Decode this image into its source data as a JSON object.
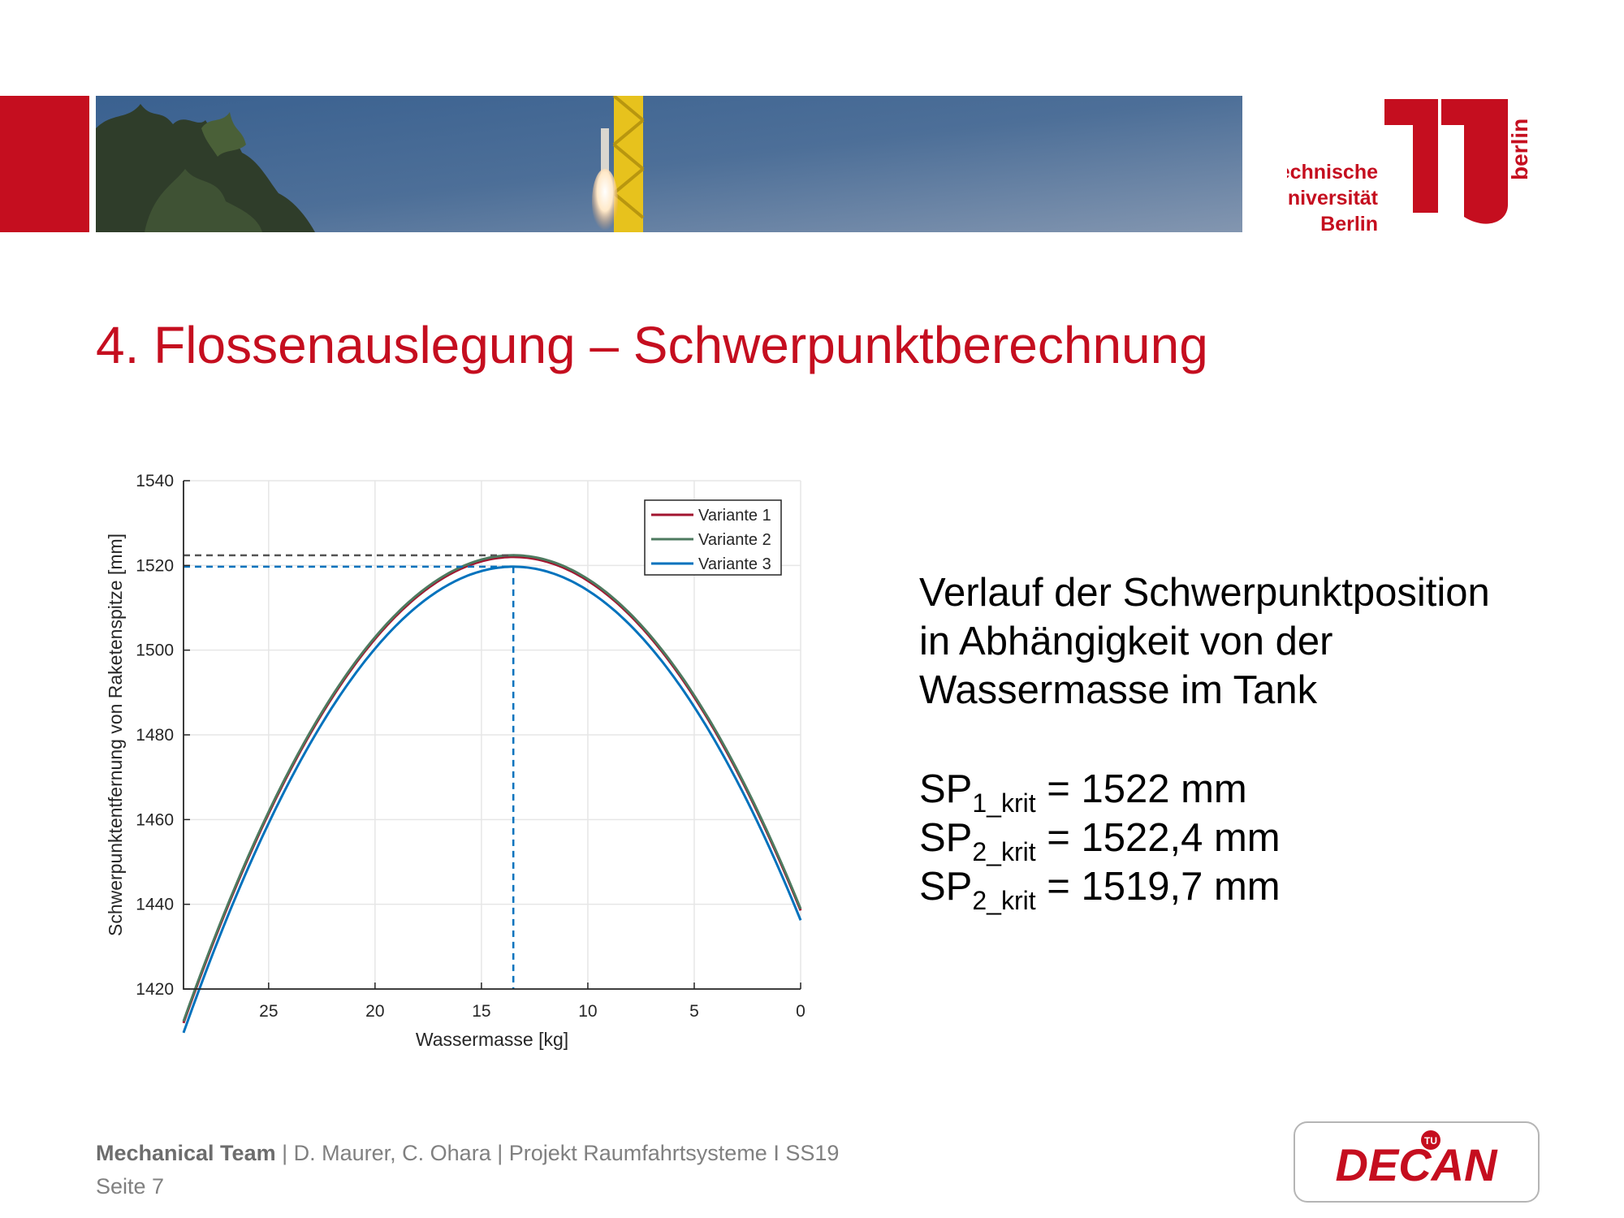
{
  "slide": {
    "title": "4. Flossenauslegung – Schwerpunktberechnung",
    "description_lines": [
      "Verlauf der Schwerpunktposition",
      "in Abhängigkeit von der",
      "Wassermasse im Tank"
    ],
    "sp_values": [
      {
        "base": "SP",
        "sub": "1_krit",
        "value": "= 1522 mm"
      },
      {
        "base": "SP",
        "sub": "2_krit",
        "value": "= 1522,4 mm"
      },
      {
        "base": "SP",
        "sub": "2_krit",
        "value": "= 1519,7 mm"
      }
    ]
  },
  "footer": {
    "team": "Mechanical Team",
    "credits": "| D. Maurer, C. Ohara | Projekt Raumfahrtsysteme I SS19",
    "page": "Seite 7"
  },
  "logos": {
    "tu_lines": [
      "Technische",
      "Universität",
      "Berlin"
    ],
    "tu_side": "berlin",
    "decan": "DECAN",
    "decan_badge": "TU"
  },
  "colors": {
    "accent_red": "#c50e1f",
    "series_1": "#a2142f",
    "series_2": "#4d7a5f",
    "series_3": "#0072bd"
  },
  "chart_data": {
    "type": "line",
    "xlabel": "Wassermasse [kg]",
    "ylabel": "Schwerpunktentfernung von Raketenspitze [mm]",
    "xlim": [
      29,
      0
    ],
    "x_reversed": true,
    "ylim": [
      1420,
      1540
    ],
    "xticks": [
      25,
      20,
      15,
      10,
      5,
      0
    ],
    "yticks": [
      1420,
      1440,
      1460,
      1480,
      1500,
      1520,
      1540
    ],
    "grid": true,
    "legend_position": "top-right",
    "series": [
      {
        "name": "Variante 1",
        "color": "#a2142f",
        "peak": [
          13.5,
          1522
        ],
        "curvature": 0.458,
        "x": [
          29,
          0
        ]
      },
      {
        "name": "Variante 2",
        "color": "#4d7a5f",
        "peak": [
          13.5,
          1522.4
        ],
        "curvature": 0.458,
        "x": [
          29,
          0
        ]
      },
      {
        "name": "Variante 3",
        "color": "#0072bd",
        "peak": [
          13.5,
          1519.7
        ],
        "curvature": 0.458,
        "x": [
          29,
          0
        ]
      }
    ],
    "reference_lines": [
      {
        "series": "Variante 2",
        "color": "#555555",
        "x": 13.5,
        "y": 1522.4
      },
      {
        "series": "Variante 3",
        "color": "#0072bd",
        "x": 13.5,
        "y": 1519.7
      }
    ]
  }
}
